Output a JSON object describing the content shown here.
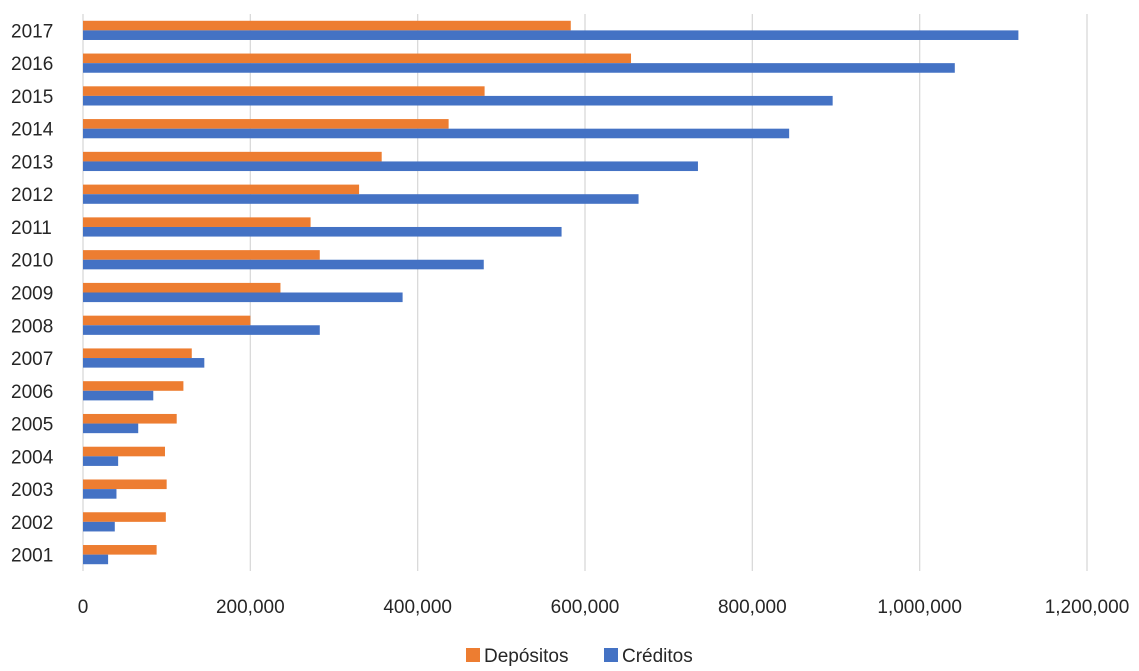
{
  "chart_data": {
    "type": "bar",
    "orientation": "horizontal",
    "title": "",
    "xlabel": "",
    "ylabel": "",
    "categories": [
      "2017",
      "2016",
      "2015",
      "2014",
      "2013",
      "2012",
      "2011",
      "2010",
      "2009",
      "2008",
      "2007",
      "2006",
      "2005",
      "2004",
      "2003",
      "2002",
      "2001"
    ],
    "series": [
      {
        "name": "Depósitos",
        "color": "#ED7D31",
        "values": [
          583000,
          655000,
          480000,
          437000,
          357000,
          330000,
          272000,
          283000,
          236000,
          200000,
          130000,
          120000,
          112000,
          98000,
          100000,
          99000,
          88000
        ]
      },
      {
        "name": "Créditos",
        "color": "#4472C4",
        "values": [
          1118000,
          1042000,
          896000,
          844000,
          735000,
          664000,
          572000,
          479000,
          382000,
          283000,
          145000,
          84000,
          66000,
          42000,
          40000,
          38000,
          30000
        ]
      }
    ],
    "xlim": [
      0,
      1200000
    ],
    "x_ticks": [
      0,
      200000,
      400000,
      600000,
      800000,
      1000000,
      1200000
    ],
    "x_tick_labels": [
      "0",
      "200,000",
      "400,000",
      "600,000",
      "800,000",
      "1,000,000",
      "1,200,000"
    ],
    "grid": true,
    "legend_position": "bottom",
    "legend": [
      {
        "label": "Depósitos",
        "color": "#ED7D31"
      },
      {
        "label": "Créditos",
        "color": "#4472C4"
      }
    ],
    "gridline_color": "#D9D9D9"
  }
}
